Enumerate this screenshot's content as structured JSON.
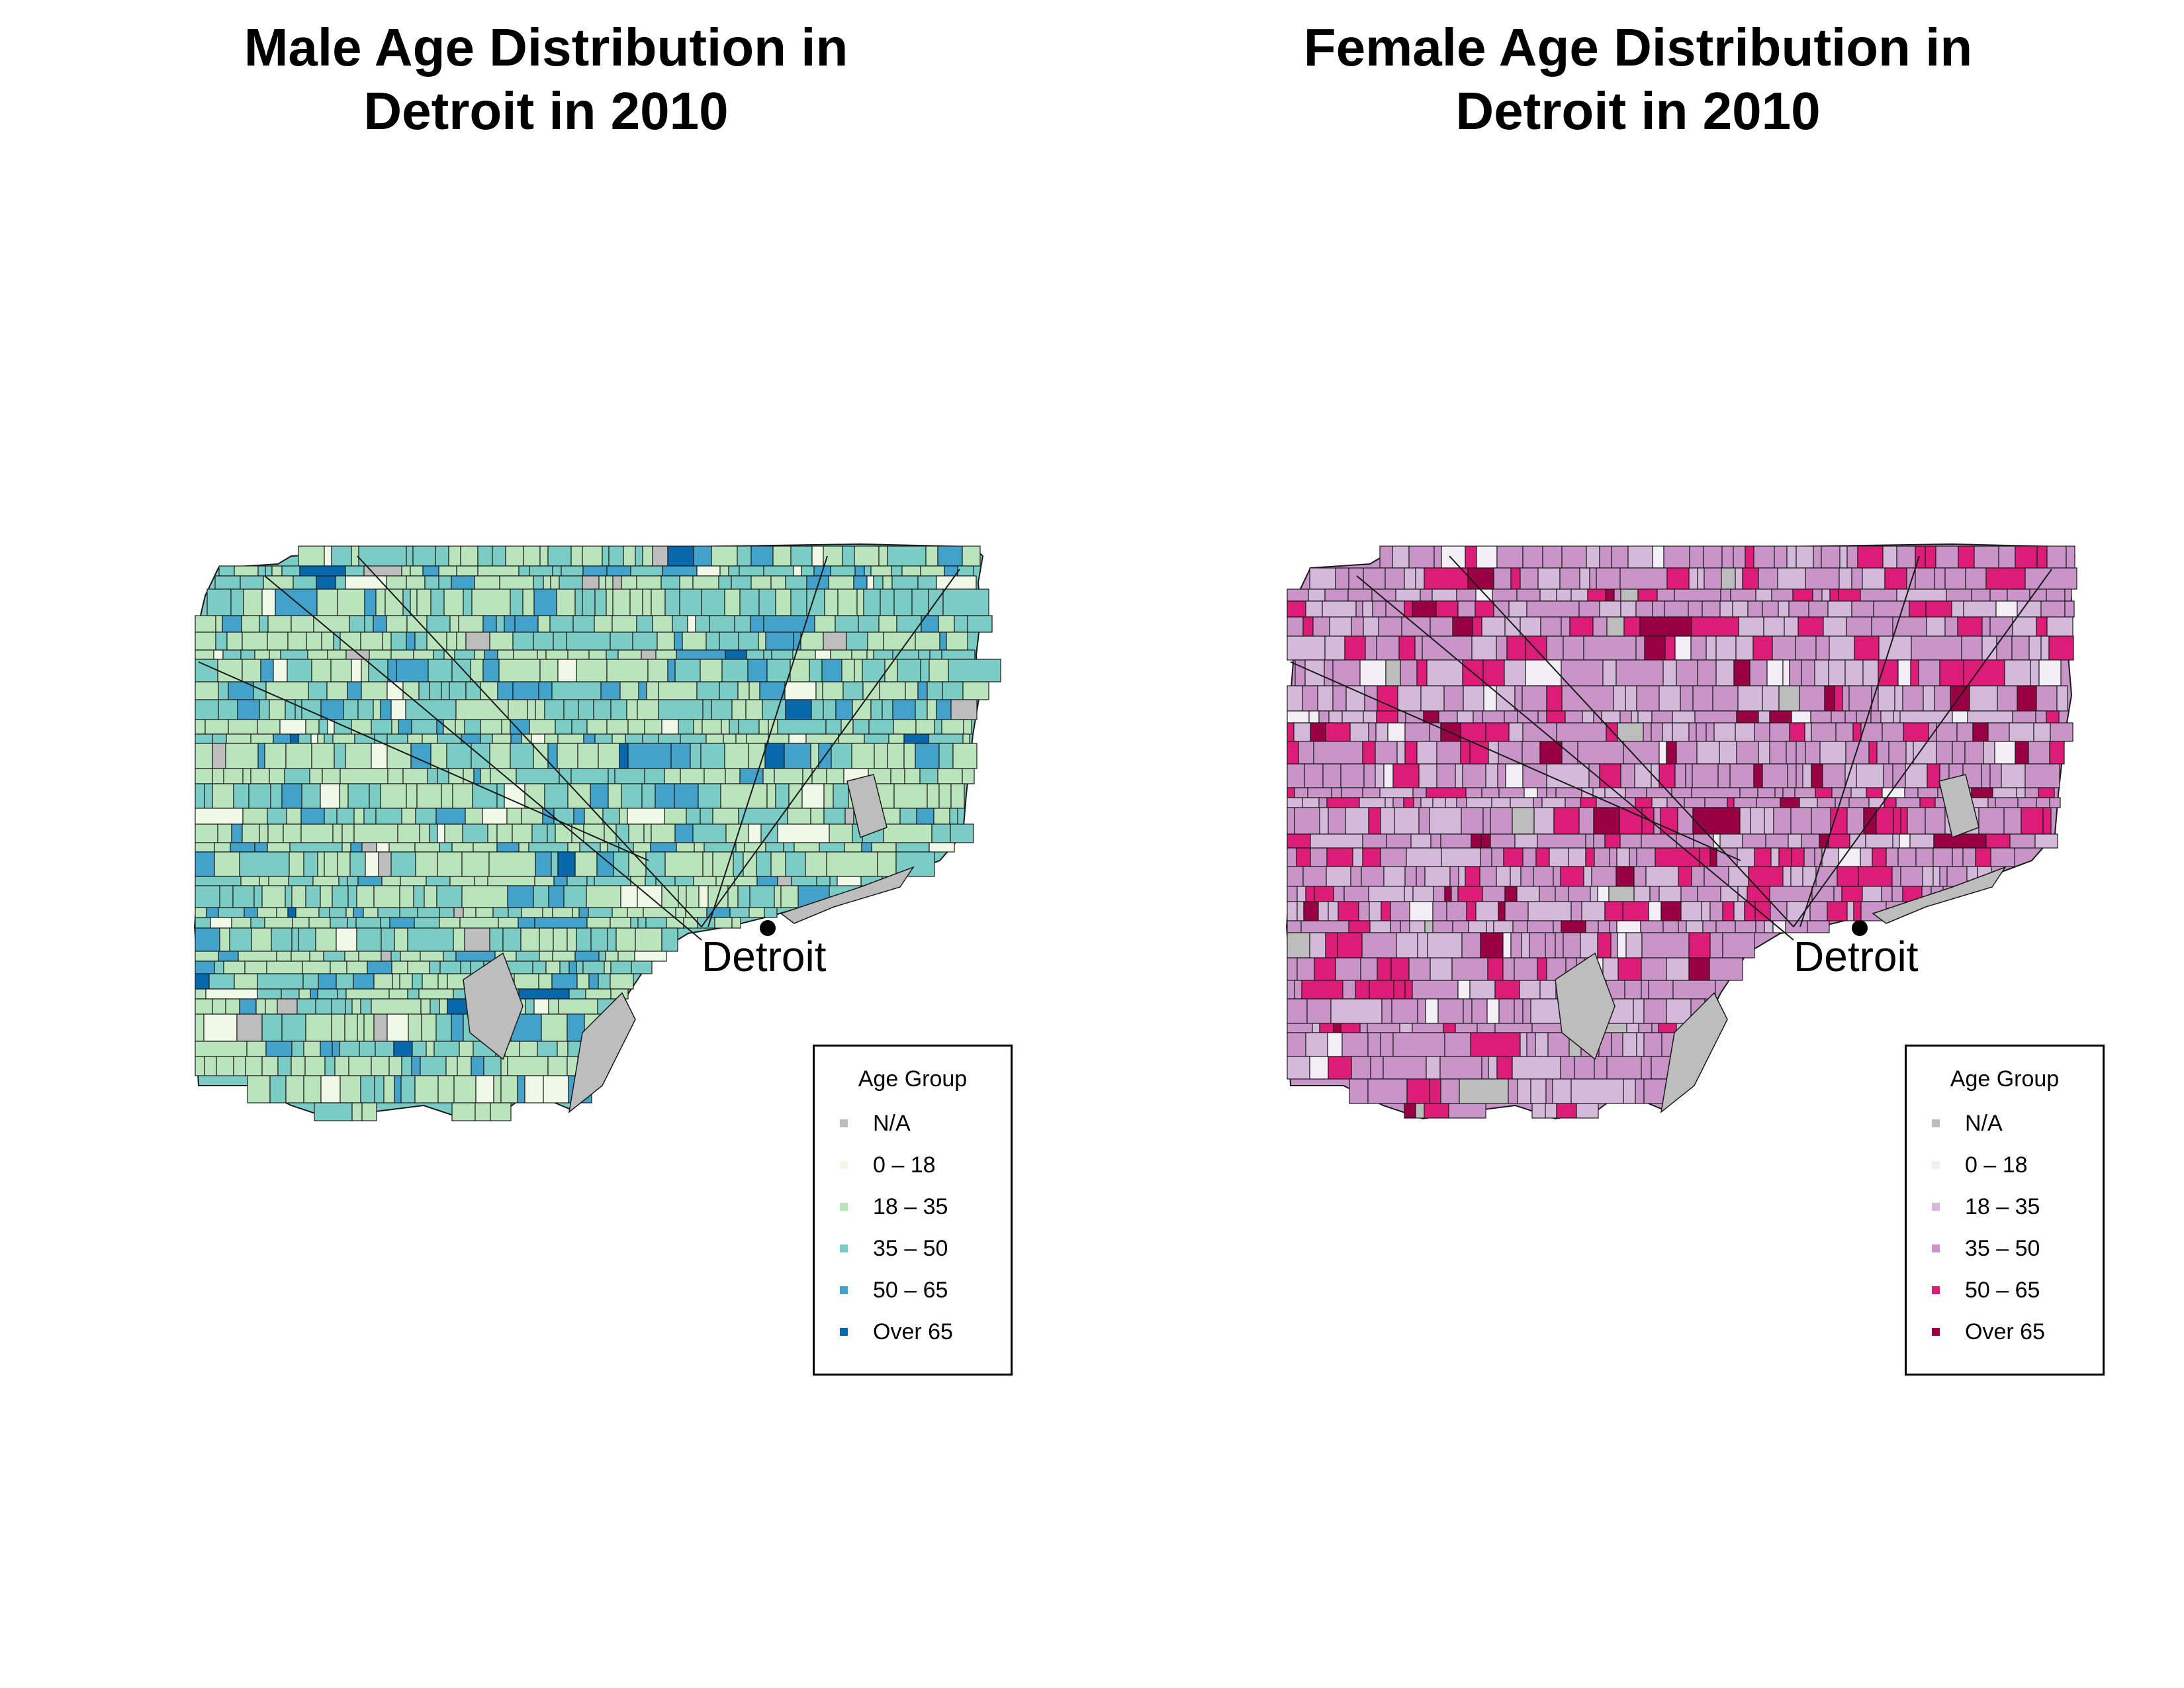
{
  "colors": {
    "male": {
      "na": "#bdbdbd",
      "g0_18": "#f0f9e8",
      "g18_35": "#bae4bc",
      "g35_50": "#7bccc4",
      "g50_65": "#43a2ca",
      "g65": "#0868ac"
    },
    "female": {
      "na": "#bdbdbd",
      "g0_18": "#f1eef6",
      "g18_35": "#d4b9da",
      "g35_50": "#c994c7",
      "g50_65": "#dd1c77",
      "g65": "#980043"
    },
    "border": "#1a1a1a"
  },
  "maps": [
    {
      "id": "male",
      "title_line1": "Male Age Distribution in",
      "title_line2": "Detroit in 2010",
      "city_label": "Detroit",
      "legend_title": "Age Group",
      "legend": [
        {
          "label": "N/A",
          "color_key": "na"
        },
        {
          "label": "0 – 18",
          "color_key": "g0_18"
        },
        {
          "label": "18 – 35",
          "color_key": "g18_35"
        },
        {
          "label": "35 – 50",
          "color_key": "g35_50"
        },
        {
          "label": "50 – 65",
          "color_key": "g50_65"
        },
        {
          "label": "Over 65",
          "color_key": "g65"
        }
      ]
    },
    {
      "id": "female",
      "title_line1": "Female Age Distribution in",
      "title_line2": "Detroit in 2010",
      "city_label": "Detroit",
      "legend_title": "Age Group",
      "legend": [
        {
          "label": "N/A",
          "color_key": "na"
        },
        {
          "label": "0 – 18",
          "color_key": "g0_18"
        },
        {
          "label": "18 – 35",
          "color_key": "g18_35"
        },
        {
          "label": "35 – 50",
          "color_key": "g35_50"
        },
        {
          "label": "50 – 65",
          "color_key": "g50_65"
        },
        {
          "label": "Over 65",
          "color_key": "g65"
        }
      ]
    }
  ]
}
